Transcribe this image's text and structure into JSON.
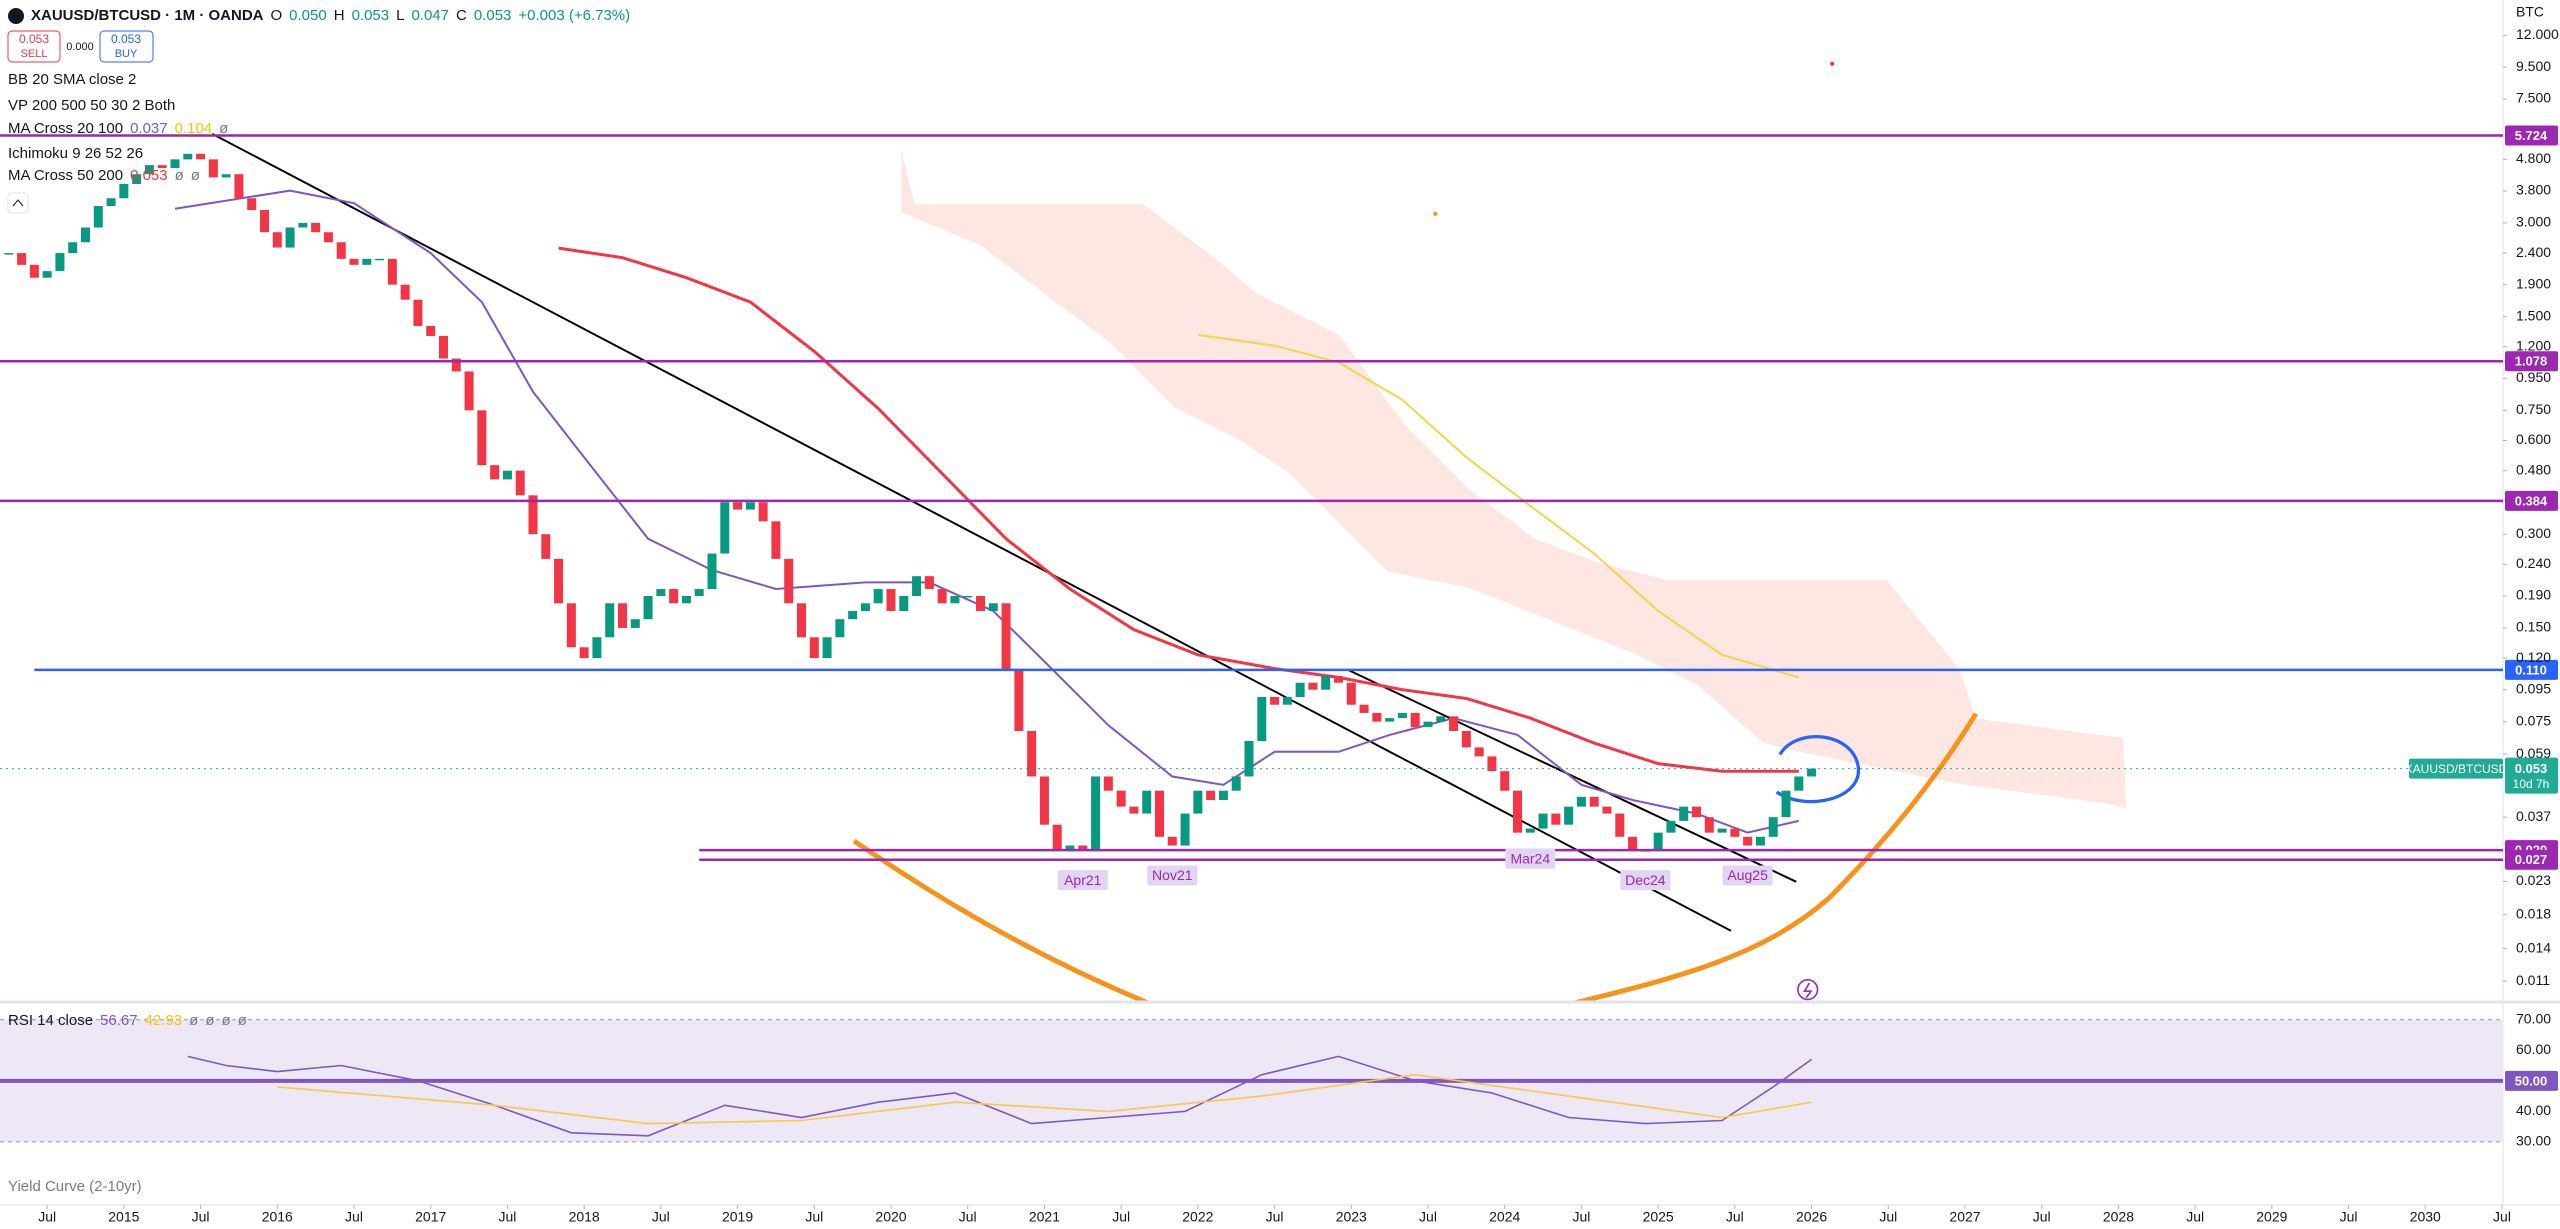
{
  "header": {
    "symbol": "XAUUSD/BTCUSD · 1M · OANDA",
    "ohlc": [
      {
        "key": "O",
        "value": "0.050"
      },
      {
        "key": "H",
        "value": "0.053"
      },
      {
        "key": "L",
        "value": "0.047"
      },
      {
        "key": "C",
        "value": "0.053"
      }
    ],
    "change": "+0.003 (+6.73%)",
    "sell": {
      "price": "0.053",
      "label": "SELL"
    },
    "spread": "0.000",
    "buy": {
      "price": "0.053",
      "label": "BUY"
    }
  },
  "indicators": [
    {
      "name": "BB 20 SMA close 2"
    },
    {
      "name": "VP 200 500 50 30 2 Both"
    },
    {
      "name": "MA Cross 20 100",
      "values": [
        "0.037",
        "0.104",
        "ø"
      ]
    },
    {
      "name": "Ichimoku 9 26 52 26"
    },
    {
      "name": "MA Cross 50 200",
      "values": [
        "0.053",
        "ø",
        "ø"
      ]
    }
  ],
  "rsi_legend": {
    "name": "RSI 14 close",
    "values": [
      "56.67",
      "42.93",
      "ø",
      "ø",
      "ø",
      "ø"
    ]
  },
  "yield_curve": "Yield Curve (2-10yr)",
  "chart_data": [
    {
      "type": "candlestick",
      "unit": "BTC",
      "log_scale": true,
      "grid": false,
      "color_up": "#089981",
      "color_down": "#f23645",
      "xlim": [
        "2014-03",
        "2030-07"
      ],
      "ylim": [
        0.0095,
        15.6
      ],
      "x": [
        "2014-04",
        "2014-05",
        "2014-06",
        "2014-07",
        "2014-08",
        "2014-09",
        "2014-10",
        "2014-11",
        "2014-12",
        "2015-01",
        "2015-02",
        "2015-03",
        "2015-04",
        "2015-05",
        "2015-06",
        "2015-07",
        "2015-08",
        "2015-09",
        "2015-10",
        "2015-11",
        "2015-12",
        "2016-01",
        "2016-02",
        "2016-03",
        "2016-04",
        "2016-05",
        "2016-06",
        "2016-07",
        "2016-08",
        "2016-09",
        "2016-10",
        "2016-11",
        "2016-12",
        "2017-01",
        "2017-02",
        "2017-03",
        "2017-04",
        "2017-05",
        "2017-06",
        "2017-07",
        "2017-08",
        "2017-09",
        "2017-10",
        "2017-11",
        "2017-12",
        "2018-01",
        "2018-02",
        "2018-03",
        "2018-04",
        "2018-05",
        "2018-06",
        "2018-07",
        "2018-08",
        "2018-09",
        "2018-10",
        "2018-11",
        "2018-12",
        "2019-01",
        "2019-02",
        "2019-03",
        "2019-04",
        "2019-05",
        "2019-06",
        "2019-07",
        "2019-08",
        "2019-09",
        "2019-10",
        "2019-11",
        "2019-12",
        "2020-01",
        "2020-02",
        "2020-03",
        "2020-04",
        "2020-05",
        "2020-06",
        "2020-07",
        "2020-08",
        "2020-09",
        "2020-10",
        "2020-11",
        "2020-12",
        "2021-01",
        "2021-02",
        "2021-03",
        "2021-04",
        "2021-05",
        "2021-06",
        "2021-07",
        "2021-08",
        "2021-09",
        "2021-10",
        "2021-11",
        "2021-12",
        "2022-01",
        "2022-02",
        "2022-03",
        "2022-04",
        "2022-05",
        "2022-06",
        "2022-07",
        "2022-08",
        "2022-09",
        "2022-10",
        "2022-11",
        "2022-12",
        "2023-01",
        "2023-02",
        "2023-03",
        "2023-04",
        "2023-05",
        "2023-06",
        "2023-07",
        "2023-08",
        "2023-09",
        "2023-10",
        "2023-11",
        "2023-12",
        "2024-01",
        "2024-02",
        "2024-03",
        "2024-04",
        "2024-05",
        "2024-06",
        "2024-07",
        "2024-08",
        "2024-09",
        "2024-10",
        "2024-11",
        "2024-12",
        "2025-01",
        "2025-02",
        "2025-03",
        "2025-04",
        "2025-05",
        "2025-06",
        "2025-07",
        "2025-08",
        "2025-09",
        "2025-10",
        "2025-11",
        "2025-12",
        "2026-01"
      ],
      "values": [
        2.4,
        2.2,
        2.0,
        2.1,
        2.4,
        2.6,
        2.9,
        3.4,
        3.6,
        4.0,
        4.3,
        4.6,
        4.5,
        4.8,
        5.0,
        4.8,
        4.2,
        4.3,
        3.6,
        3.3,
        2.8,
        2.5,
        2.9,
        3.0,
        2.8,
        2.6,
        2.3,
        2.2,
        2.3,
        2.3,
        1.9,
        1.7,
        1.4,
        1.3,
        1.1,
        1.0,
        0.75,
        0.5,
        0.45,
        0.48,
        0.4,
        0.3,
        0.25,
        0.18,
        0.13,
        0.12,
        0.14,
        0.18,
        0.15,
        0.16,
        0.19,
        0.2,
        0.18,
        0.19,
        0.2,
        0.26,
        0.38,
        0.36,
        0.38,
        0.33,
        0.25,
        0.18,
        0.14,
        0.12,
        0.14,
        0.16,
        0.17,
        0.18,
        0.2,
        0.17,
        0.19,
        0.22,
        0.2,
        0.18,
        0.19,
        0.19,
        0.17,
        0.18,
        0.11,
        0.07,
        0.05,
        0.035,
        0.029,
        0.03,
        0.029,
        0.05,
        0.045,
        0.04,
        0.038,
        0.045,
        0.032,
        0.03,
        0.038,
        0.045,
        0.042,
        0.045,
        0.05,
        0.065,
        0.09,
        0.085,
        0.09,
        0.1,
        0.095,
        0.105,
        0.1,
        0.085,
        0.08,
        0.075,
        0.077,
        0.08,
        0.072,
        0.075,
        0.078,
        0.07,
        0.062,
        0.058,
        0.052,
        0.045,
        0.033,
        0.034,
        0.038,
        0.035,
        0.04,
        0.043,
        0.04,
        0.038,
        0.032,
        0.029,
        0.029,
        0.033,
        0.036,
        0.04,
        0.037,
        0.033,
        0.034,
        0.032,
        0.03,
        0.032,
        0.037,
        0.045,
        0.05,
        0.053
      ],
      "overlays": [
        {
          "color": "#7e57c2",
          "x": [
            "2015-05",
            "2016-02",
            "2016-07",
            "2017-01",
            "2017-05",
            "2017-09",
            "2018-01",
            "2018-06",
            "2018-11",
            "2019-04",
            "2019-11",
            "2020-04",
            "2020-09",
            "2021-01",
            "2021-06",
            "2021-11",
            "2022-03",
            "2022-07",
            "2022-12",
            "2023-04",
            "2023-09",
            "2024-02",
            "2024-07",
            "2024-11",
            "2025-04",
            "2025-08",
            "2025-12"
          ],
          "values": [
            3.33,
            3.81,
            3.47,
            2.4,
            1.67,
            0.86,
            0.53,
            0.29,
            0.23,
            0.2,
            0.21,
            0.21,
            0.17,
            0.117,
            0.073,
            0.05,
            0.047,
            0.06,
            0.06,
            0.068,
            0.077,
            0.068,
            0.047,
            0.042,
            0.038,
            0.033,
            0.036
          ]
        },
        {
          "color": "#f23645",
          "x": [
            "2017-11",
            "2018-04",
            "2018-09",
            "2019-02",
            "2019-07",
            "2019-12",
            "2020-05",
            "2020-10",
            "2021-03",
            "2021-08",
            "2022-01",
            "2022-07",
            "2022-12",
            "2023-05",
            "2023-10",
            "2024-03",
            "2024-08",
            "2025-01",
            "2025-06",
            "2025-12"
          ],
          "values": [
            2.49,
            2.32,
            2.0,
            1.67,
            1.16,
            0.76,
            0.47,
            0.29,
            0.2,
            0.148,
            0.123,
            0.111,
            0.104,
            0.095,
            0.089,
            0.077,
            0.064,
            0.055,
            0.052,
            0.052
          ]
        },
        {
          "color": "#f5d547",
          "x": [
            "2022-01",
            "2022-07",
            "2022-12",
            "2023-05",
            "2023-10",
            "2024-03",
            "2024-08",
            "2025-01",
            "2025-06",
            "2025-12"
          ],
          "values": [
            1.31,
            1.21,
            1.07,
            0.81,
            0.53,
            0.37,
            0.26,
            0.17,
            0.123,
            0.104
          ]
        }
      ],
      "levels": [
        {
          "value": 5.724,
          "color": "#9c27b0"
        },
        {
          "value": 1.078,
          "color": "#9c27b0"
        },
        {
          "value": 0.384,
          "color": "#9c27b0"
        },
        {
          "value": 0.11,
          "label": "0.110",
          "color": "#2962ff",
          "from": "2014-06"
        },
        {
          "value": 0.029,
          "color": "#9c27b0",
          "from": "2018-10"
        },
        {
          "value": 0.027,
          "color": "#9c27b0",
          "from": "2018-10"
        }
      ],
      "annotations": [
        {
          "text": "Apr21",
          "x": "2021-04"
        },
        {
          "text": "Nov21",
          "x": "2021-11"
        },
        {
          "text": "Mar24",
          "x": "2024-03"
        },
        {
          "text": "Dec24",
          "x": "2024-12"
        },
        {
          "text": "Aug25",
          "x": "2025-08"
        }
      ],
      "last_label": {
        "symbol": "XAUUSD/BTCUSD",
        "value": 0.053,
        "countdown": "10d 7h",
        "color": "#22ab94"
      },
      "yticks": [
        {
          "value": 12,
          "label": "12.000"
        },
        {
          "value": 9.5,
          "label": "9.500"
        },
        {
          "value": 7.5,
          "label": "7.500"
        },
        {
          "value": 4.8,
          "label": "4.800"
        },
        {
          "value": 3.8,
          "label": "3.800"
        },
        {
          "value": 3,
          "label": "3.000"
        },
        {
          "value": 2.4,
          "label": "2.400"
        },
        {
          "value": 1.9,
          "label": "1.900"
        },
        {
          "value": 1.5,
          "label": "1.500"
        },
        {
          "value": 1.2,
          "label": "1.200"
        },
        {
          "value": 0.95,
          "label": "0.950"
        },
        {
          "value": 0.75,
          "label": "0.750"
        },
        {
          "value": 0.6,
          "label": "0.600"
        },
        {
          "value": 0.48,
          "label": "0.480"
        },
        {
          "value": 0.3,
          "label": "0.300"
        },
        {
          "value": 0.24,
          "label": "0.240"
        },
        {
          "value": 0.19,
          "label": "0.190"
        },
        {
          "value": 0.15,
          "label": "0.150"
        },
        {
          "value": 0.12,
          "label": "0.120"
        },
        {
          "value": 0.095,
          "label": "0.095"
        },
        {
          "value": 0.075,
          "label": "0.075"
        },
        {
          "value": 0.059,
          "label": "0.059"
        },
        {
          "value": 0.037,
          "label": "0.037"
        },
        {
          "value": 0.023,
          "label": "0.023"
        },
        {
          "value": 0.018,
          "label": "0.018"
        },
        {
          "value": 0.014,
          "label": "0.014"
        },
        {
          "value": 0.011,
          "label": "0.011"
        }
      ],
      "xticks": [
        {
          "value": "2014-07",
          "label": "Jul"
        },
        {
          "value": "2015-01",
          "label": "2015"
        },
        {
          "value": "2015-07",
          "label": "Jul"
        },
        {
          "value": "2016-01",
          "label": "2016"
        },
        {
          "value": "2016-07",
          "label": "Jul"
        },
        {
          "value": "2017-01",
          "label": "2017"
        },
        {
          "value": "2017-07",
          "label": "Jul"
        },
        {
          "value": "2018-01",
          "label": "2018"
        },
        {
          "value": "2018-07",
          "label": "Jul"
        },
        {
          "value": "2019-01",
          "label": "2019"
        },
        {
          "value": "2019-07",
          "label": "Jul"
        },
        {
          "value": "2020-01",
          "label": "2020"
        },
        {
          "value": "2020-07",
          "label": "Jul"
        },
        {
          "value": "2021-01",
          "label": "2021"
        },
        {
          "value": "2021-07",
          "label": "Jul"
        },
        {
          "value": "2022-01",
          "label": "2022"
        },
        {
          "value": "2022-07",
          "label": "Jul"
        },
        {
          "value": "2023-01",
          "label": "2023"
        },
        {
          "value": "2023-07",
          "label": "Jul"
        },
        {
          "value": "2024-01",
          "label": "2024"
        },
        {
          "value": "2024-07",
          "label": "Jul"
        },
        {
          "value": "2025-01",
          "label": "2025"
        },
        {
          "value": "2025-07",
          "label": "Jul"
        },
        {
          "value": "2026-01",
          "label": "2026"
        },
        {
          "value": "2026-07",
          "label": "Jul"
        },
        {
          "value": "2027-01",
          "label": "2027"
        },
        {
          "value": "2027-07",
          "label": "Jul"
        },
        {
          "value": "2028-01",
          "label": "2028"
        },
        {
          "value": "2028-07",
          "label": "Jul"
        },
        {
          "value": "2029-01",
          "label": "2029"
        },
        {
          "value": "2029-07",
          "label": "Jul"
        },
        {
          "value": "2030-01",
          "label": "2030"
        },
        {
          "value": "2030-07",
          "label": "Jul"
        }
      ]
    },
    {
      "type": "line",
      "xlim": [
        "2014-03",
        "2030-07"
      ],
      "ylim": [
        11,
        73.5
      ],
      "band_color": "#ede7f6",
      "midline_color": "#7e57c2",
      "yticks": [
        {
          "value": 70,
          "label": "70.00"
        },
        {
          "value": 60,
          "label": "60.00"
        },
        {
          "value": 50,
          "label": "50.00"
        },
        {
          "value": 40,
          "label": "40.00"
        },
        {
          "value": 30,
          "label": "30.00"
        }
      ],
      "series": [
        {
          "color": "#7e57c2",
          "x": [
            "2015-06",
            "2015-09",
            "2016-01",
            "2016-06",
            "2016-12",
            "2017-06",
            "2017-12",
            "2018-06",
            "2018-12",
            "2019-06",
            "2019-12",
            "2020-06",
            "2020-12",
            "2021-06",
            "2021-12",
            "2022-06",
            "2022-12",
            "2023-06",
            "2023-12",
            "2024-06",
            "2024-12",
            "2025-06",
            "2025-10",
            "2026-01"
          ],
          "values": [
            58,
            55,
            53,
            55,
            50,
            42,
            33,
            32,
            42,
            38,
            43,
            46,
            36,
            38,
            40,
            52,
            58,
            50,
            46,
            38,
            36,
            37,
            48,
            57
          ]
        },
        {
          "color": "#f7c948",
          "x": [
            "2016-01",
            "2017-06",
            "2018-06",
            "2019-06",
            "2020-06",
            "2021-06",
            "2022-06",
            "2023-06",
            "2024-06",
            "2025-06",
            "2026-01"
          ],
          "values": [
            48,
            42,
            36,
            37,
            43,
            40,
            45,
            52,
            45,
            38,
            43
          ]
        }
      ]
    }
  ]
}
